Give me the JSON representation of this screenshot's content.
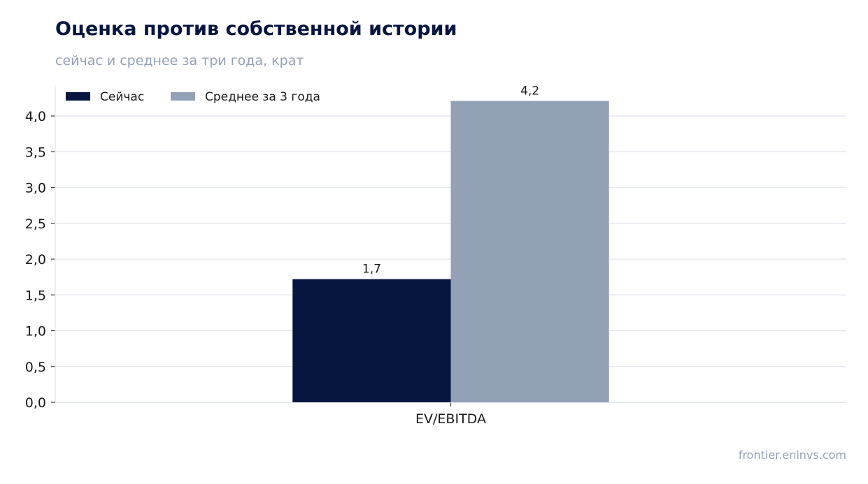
{
  "header": {
    "title": "Оценка против собственной истории",
    "subtitle": "сейчас и среднее за три года, крат"
  },
  "footer": {
    "source": "frontier.eninvs.com"
  },
  "colors": {
    "current": "#071641",
    "average": "#93a1b6",
    "grid": "#e3e7ee",
    "text": "#1a1a1a"
  },
  "chart_data": {
    "type": "bar",
    "categories": [
      "EV/EBITDA"
    ],
    "series": [
      {
        "name": "Сейчас",
        "values": [
          1.72
        ],
        "labels": [
          "1,7"
        ],
        "color": "#071641"
      },
      {
        "name": "Среднее за 3 года",
        "values": [
          4.21
        ],
        "labels": [
          "4,2"
        ],
        "color": "#93a1b6"
      }
    ],
    "yticks": [
      0,
      0.5,
      1.0,
      1.5,
      2.0,
      2.5,
      3.0,
      3.5,
      4.0
    ],
    "ytick_labels": [
      "0,0",
      "0,5",
      "1,0",
      "1,5",
      "2,0",
      "2,5",
      "3,0",
      "3,5",
      "4,0"
    ],
    "ylim": [
      0,
      4.42
    ],
    "grid": true,
    "legend_position": "top-left"
  }
}
